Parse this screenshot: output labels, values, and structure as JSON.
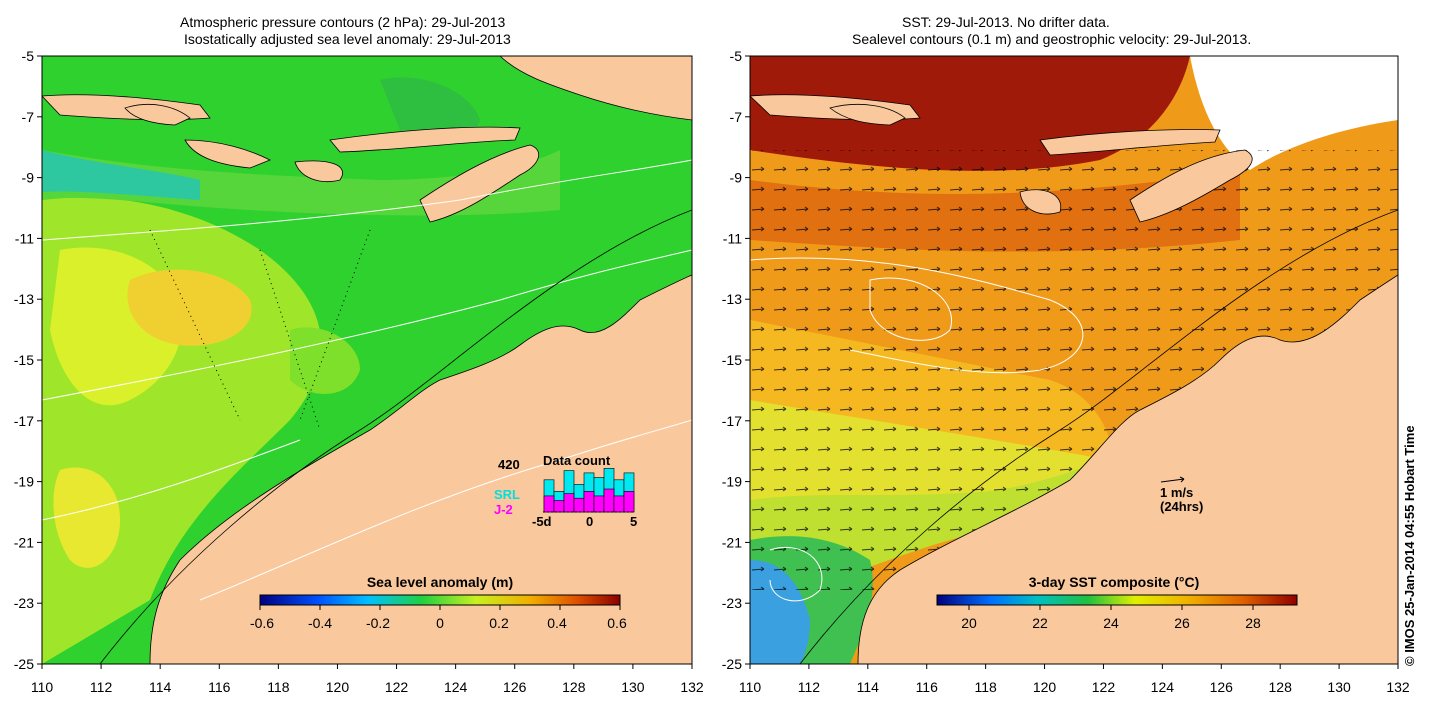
{
  "left_panel": {
    "title_line1": "Atmospheric pressure contours (2 hPa): 29-Jul-2013",
    "title_line2": "Isostatically adjusted sea level anomaly: 29-Jul-2013",
    "colorbar_label": "Sea level anomaly (m)",
    "colorbar_ticks": [
      "-0.6",
      "-0.4",
      "-0.2",
      "0",
      "0.2",
      "0.4",
      "0.6"
    ],
    "data_count": {
      "title": "Data count",
      "max_label": "420",
      "series1": "SRL",
      "series2": "J-2",
      "x_ticks": [
        "-5d",
        "0",
        "5"
      ],
      "srl_values": [
        0.7,
        0.45,
        0.9,
        0.6,
        0.85,
        0.75,
        0.95,
        0.7,
        0.85
      ],
      "j2_values": [
        0.35,
        0.25,
        0.4,
        0.3,
        0.45,
        0.35,
        0.5,
        0.35,
        0.45
      ]
    }
  },
  "right_panel": {
    "title_line1": "SST: 29-Jul-2013. No drifter data.",
    "title_line2": "Sealevel contours (0.1 m) and geostrophic velocity: 29-Jul-2013.",
    "colorbar_label": "3-day SST composite (°C)",
    "colorbar_ticks": [
      "20",
      "22",
      "24",
      "26",
      "28"
    ],
    "velocity_scale_label": "1 m/s",
    "velocity_scale_sub": "(24hrs)"
  },
  "axes": {
    "lat_ticks": [
      "-5",
      "-7",
      "-9",
      "-11",
      "-13",
      "-15",
      "-17",
      "-19",
      "-21",
      "-23",
      "-25"
    ],
    "lon_ticks": [
      "110",
      "112",
      "114",
      "116",
      "118",
      "120",
      "122",
      "124",
      "126",
      "128",
      "130",
      "132"
    ]
  },
  "credit": "© IMOS 25-Jan-2014 04:55 Hobart Time",
  "colors": {
    "land": "#f9c89d",
    "sla_background": "#2ed12e",
    "sst_background": "#f09a1a"
  }
}
